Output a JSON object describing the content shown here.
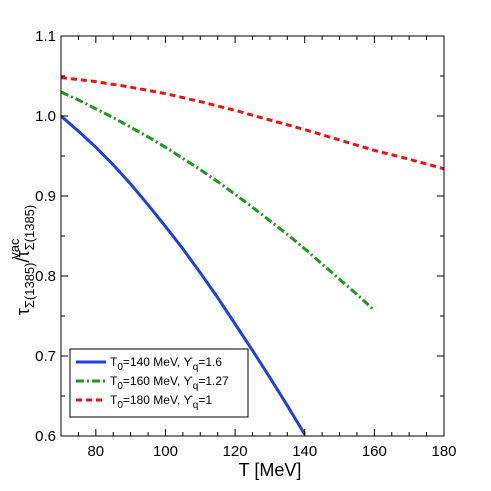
{
  "chart_data": {
    "type": "line",
    "xlabel": "T [MeV]",
    "ylabel": {
      "tau": "τ",
      "num_sub": "Σ(1385)",
      "sep": "/τ",
      "den_sub": "Σ(1385)",
      "den_sup": "vac"
    },
    "xlim": [
      70,
      180
    ],
    "ylim": [
      0.6,
      1.1
    ],
    "xticks": [
      80,
      100,
      120,
      140,
      160,
      180
    ],
    "yticks": [
      0.6,
      0.7,
      0.8,
      0.9,
      1.0,
      1.1
    ],
    "xtick_labels": [
      "80",
      "100",
      "120",
      "140",
      "160",
      "180"
    ],
    "ytick_labels": [
      "0.6",
      "0.7",
      "0.8",
      "0.9",
      "1.0",
      "1.1"
    ],
    "grid": false,
    "legend_position": "bottom-left",
    "series": [
      {
        "id": "s140",
        "legend": {
          "a": "T",
          "a_sub": "0",
          "b": "=140 MeV, ϒ",
          "b_sub": "q",
          "c": "=1.6"
        },
        "color": "#1f3fe0",
        "style": "solid",
        "x": [
          70,
          75,
          80,
          85,
          90,
          95,
          100,
          105,
          110,
          115,
          120,
          125,
          130,
          135,
          140
        ],
        "y": [
          1.0,
          0.981,
          0.961,
          0.939,
          0.915,
          0.889,
          0.862,
          0.834,
          0.804,
          0.773,
          0.74,
          0.707,
          0.673,
          0.638,
          0.602
        ]
      },
      {
        "id": "s160",
        "legend": {
          "a": "T",
          "a_sub": "0",
          "b": "=160 MeV, ϒ",
          "b_sub": "q",
          "c": "=1.27"
        },
        "color": "#1a9a1a",
        "style": "dashdot",
        "x": [
          70,
          75,
          80,
          85,
          90,
          95,
          100,
          105,
          110,
          115,
          120,
          125,
          130,
          135,
          140,
          145,
          150,
          155,
          160
        ],
        "y": [
          1.03,
          1.02,
          1.009,
          0.998,
          0.986,
          0.974,
          0.961,
          0.947,
          0.933,
          0.918,
          0.902,
          0.886,
          0.869,
          0.852,
          0.834,
          0.815,
          0.796,
          0.777,
          0.757
        ]
      },
      {
        "id": "s180",
        "legend": {
          "a": "T",
          "a_sub": "0",
          "b": "=180 MeV, ϒ",
          "b_sub": "q",
          "c": "=1"
        },
        "color": "#ee1111",
        "style": "dashed",
        "x": [
          70,
          80,
          90,
          100,
          110,
          120,
          130,
          140,
          150,
          160,
          170,
          180
        ],
        "y": [
          1.048,
          1.043,
          1.036,
          1.028,
          1.018,
          1.007,
          0.995,
          0.983,
          0.97,
          0.957,
          0.946,
          0.934
        ]
      }
    ]
  }
}
